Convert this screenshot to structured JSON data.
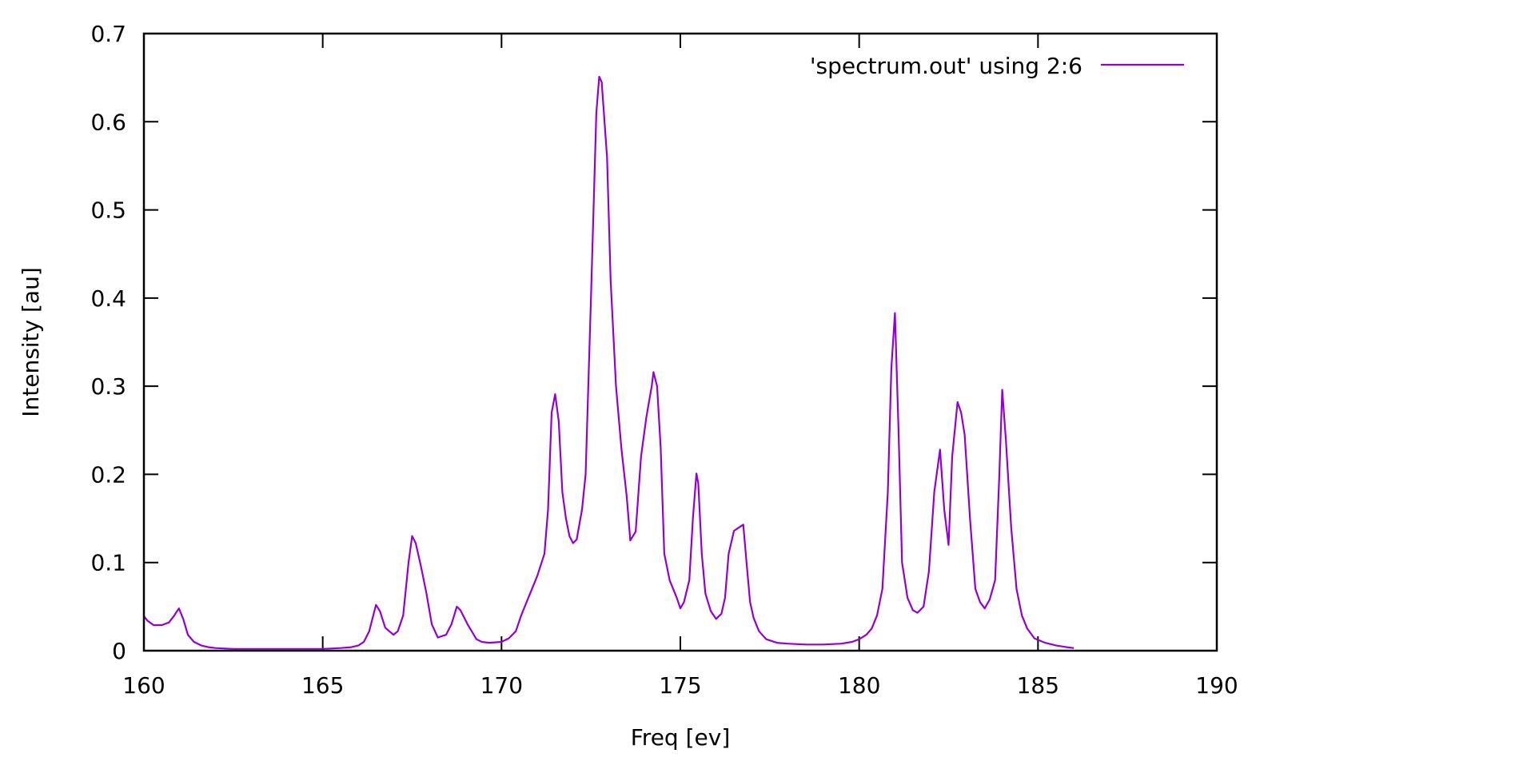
{
  "chart_data": {
    "type": "line",
    "title": "",
    "xlabel": "Freq [ev]",
    "ylabel": "Intensity [au]",
    "xlim": [
      160,
      190
    ],
    "ylim": [
      0,
      0.7
    ],
    "x_ticks": [
      160,
      165,
      170,
      175,
      180,
      185,
      190
    ],
    "y_ticks": [
      0,
      0.1,
      0.2,
      0.3,
      0.4,
      0.5,
      0.6,
      0.7
    ],
    "x_tick_labels": [
      "160",
      "165",
      "170",
      "175",
      "180",
      "185",
      "190"
    ],
    "y_tick_labels": [
      "0",
      "0.1",
      "0.2",
      "0.3",
      "0.4",
      "0.5",
      "0.6",
      "0.7"
    ],
    "grid": false,
    "legend_position": "top-right",
    "series": [
      {
        "name": "'spectrum.out' using 2:6",
        "color": "#9400d3",
        "x": [
          160.0,
          160.1,
          160.27,
          160.5,
          160.7,
          160.85,
          160.98,
          161.1,
          161.23,
          161.4,
          161.6,
          161.8,
          162.0,
          162.5,
          163.0,
          164.0,
          165.0,
          165.5,
          165.8,
          166.0,
          166.15,
          166.3,
          166.49,
          166.6,
          166.75,
          166.98,
          167.1,
          167.25,
          167.4,
          167.5,
          167.6,
          167.75,
          167.9,
          168.05,
          168.22,
          168.45,
          168.6,
          168.75,
          168.85,
          169.05,
          169.3,
          169.45,
          169.66,
          170.0,
          170.2,
          170.4,
          170.55,
          170.75,
          171.0,
          171.2,
          171.3,
          171.4,
          171.5,
          171.6,
          171.7,
          171.8,
          171.9,
          172.0,
          172.1,
          172.25,
          172.35,
          172.5,
          172.65,
          172.73,
          172.8,
          172.95,
          173.05,
          173.2,
          173.35,
          173.5,
          173.6,
          173.75,
          173.9,
          174.05,
          174.2,
          174.25,
          174.35,
          174.45,
          174.55,
          174.7,
          174.9,
          175.0,
          175.1,
          175.25,
          175.35,
          175.45,
          175.5,
          175.6,
          175.7,
          175.85,
          176.0,
          176.15,
          176.25,
          176.35,
          176.5,
          176.65,
          176.76,
          176.85,
          176.95,
          177.05,
          177.2,
          177.4,
          177.7,
          178.0,
          178.5,
          179.0,
          179.5,
          179.8,
          180.0,
          180.2,
          180.35,
          180.5,
          180.65,
          180.8,
          180.9,
          181.0,
          181.1,
          181.2,
          181.35,
          181.5,
          181.63,
          181.8,
          181.95,
          182.1,
          182.26,
          182.38,
          182.5,
          182.6,
          182.75,
          182.85,
          182.95,
          183.1,
          183.25,
          183.38,
          183.51,
          183.65,
          183.8,
          183.92,
          184.0,
          184.1,
          184.25,
          184.4,
          184.55,
          184.7,
          184.9,
          185.2,
          185.5,
          185.8,
          186.0
        ],
        "y": [
          0.039,
          0.034,
          0.029,
          0.029,
          0.032,
          0.04,
          0.048,
          0.036,
          0.018,
          0.01,
          0.006,
          0.004,
          0.003,
          0.002,
          0.002,
          0.002,
          0.002,
          0.003,
          0.004,
          0.006,
          0.01,
          0.022,
          0.052,
          0.045,
          0.026,
          0.018,
          0.022,
          0.04,
          0.1,
          0.13,
          0.122,
          0.095,
          0.065,
          0.03,
          0.015,
          0.018,
          0.03,
          0.05,
          0.046,
          0.03,
          0.013,
          0.01,
          0.009,
          0.01,
          0.014,
          0.022,
          0.04,
          0.06,
          0.085,
          0.11,
          0.16,
          0.27,
          0.291,
          0.26,
          0.18,
          0.15,
          0.13,
          0.122,
          0.126,
          0.16,
          0.2,
          0.4,
          0.61,
          0.651,
          0.645,
          0.56,
          0.42,
          0.3,
          0.23,
          0.175,
          0.125,
          0.135,
          0.22,
          0.265,
          0.3,
          0.316,
          0.3,
          0.23,
          0.11,
          0.08,
          0.06,
          0.048,
          0.055,
          0.08,
          0.15,
          0.201,
          0.19,
          0.11,
          0.065,
          0.045,
          0.036,
          0.042,
          0.06,
          0.11,
          0.136,
          0.14,
          0.143,
          0.1,
          0.055,
          0.037,
          0.022,
          0.013,
          0.009,
          0.008,
          0.007,
          0.007,
          0.008,
          0.01,
          0.013,
          0.018,
          0.025,
          0.04,
          0.07,
          0.18,
          0.32,
          0.383,
          0.25,
          0.1,
          0.06,
          0.046,
          0.043,
          0.05,
          0.09,
          0.18,
          0.228,
          0.16,
          0.12,
          0.22,
          0.282,
          0.27,
          0.245,
          0.15,
          0.07,
          0.055,
          0.048,
          0.058,
          0.08,
          0.2,
          0.296,
          0.24,
          0.14,
          0.07,
          0.04,
          0.025,
          0.014,
          0.009,
          0.006,
          0.004,
          0.003
        ]
      }
    ]
  },
  "legend": {
    "entries": [
      {
        "label": "'spectrum.out' using 2:6",
        "color": "#9400d3"
      }
    ]
  },
  "axes": {
    "xlabel": "Freq [ev]",
    "ylabel": "Intensity [au]"
  }
}
